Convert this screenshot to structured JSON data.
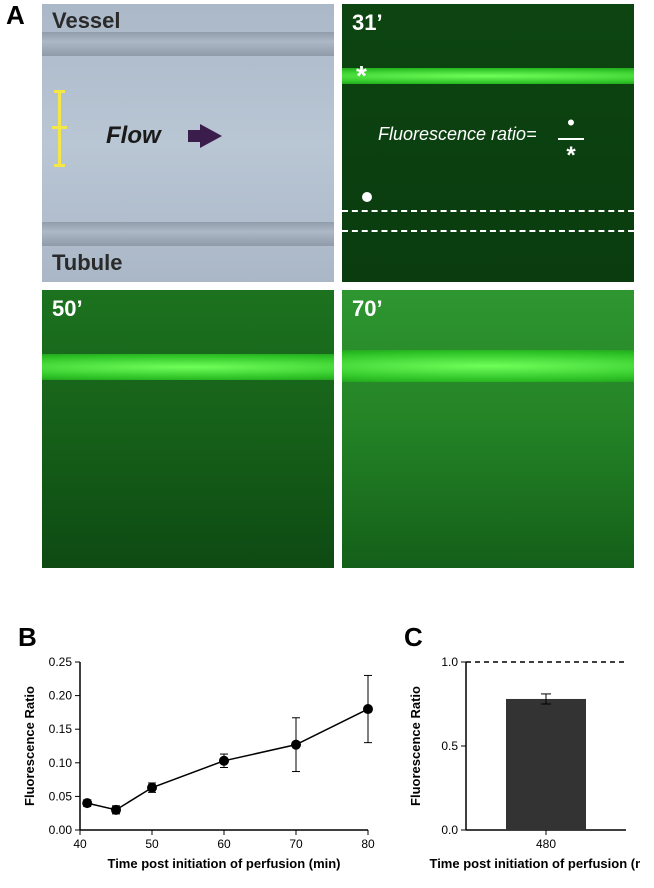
{
  "panelA": {
    "label": "A",
    "label_fontsize": 26,
    "brightfield": {
      "vessel_label": "Vessel",
      "tubule_label": "Tubule",
      "flow_label": "Flow",
      "bg_color": "#b5c3d1",
      "stripe_color": "#94a1af",
      "text_color": "#2a2a2a",
      "scalebar_color": "#f5e748",
      "arrow_color": "#3a1d4a",
      "label_fontsize": 22
    },
    "fluor": {
      "times": [
        "31’",
        "50’",
        "70’"
      ],
      "ratio_text": "Fluorescence ratio=",
      "ratio_numerator_symbol": "dot",
      "ratio_denominator_symbol": "asterisk",
      "bg_color": "#0a3c0f",
      "band_bright": "#6fff5a",
      "band_mid": "#2bbf24",
      "text_color": "#ffffff",
      "diffuse_levels": [
        0.1,
        0.35,
        0.55
      ],
      "band_heights": [
        16,
        26,
        32
      ],
      "band_top": 64
    }
  },
  "panelB": {
    "label": "B",
    "type": "line",
    "xlabel": "Time post initiation of perfusion (min)",
    "ylabel": "Fluorescence Ratio",
    "xlim": [
      40,
      80
    ],
    "xtick_step": 10,
    "ylim": [
      0.0,
      0.25
    ],
    "ytick_step": 0.05,
    "x": [
      41,
      45,
      50,
      60,
      70,
      80
    ],
    "y": [
      0.04,
      0.03,
      0.063,
      0.103,
      0.127,
      0.18
    ],
    "err": [
      0.005,
      0.006,
      0.007,
      0.01,
      0.04,
      0.05
    ],
    "marker_color": "#000000",
    "line_color": "#000000",
    "line_width": 1.5,
    "marker_size": 5,
    "label_fontsize": 13,
    "tick_fontsize": 12,
    "background_color": "#ffffff"
  },
  "panelC": {
    "label": "C",
    "type": "bar",
    "xlabel": "Time post initiation of perfusion (min)",
    "ylabel": "Fluorescence Ratio",
    "categories": [
      "480"
    ],
    "values": [
      0.78
    ],
    "err": [
      0.03
    ],
    "ylim": [
      0.0,
      1.0
    ],
    "ytick_step": 0.5,
    "reference_line": 1.0,
    "bar_color": "#333333",
    "bar_width": 0.5,
    "line_color": "#000000",
    "dash_color": "#000000",
    "label_fontsize": 13,
    "tick_fontsize": 12,
    "background_color": "#ffffff"
  }
}
